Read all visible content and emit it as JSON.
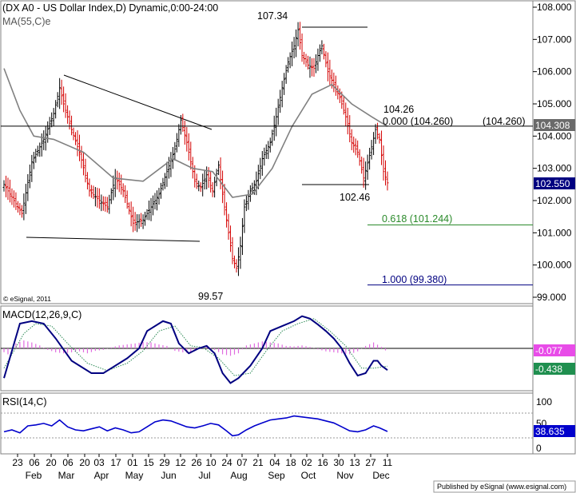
{
  "header": {
    "title": "(DX A0 - US Dollar Index,D) Dynamic,0:00-24:00",
    "ma_label": "MA(55,C)e",
    "copyright": "© eSignal, 2011"
  },
  "footer": {
    "published": "Published by eSignal (www.esignal.com)"
  },
  "colors": {
    "bull_bar": "#000000",
    "bear_bar": "#d40000",
    "ma": "#808080",
    "macd_line": "#000080",
    "signal_line": "#2e8b57",
    "histogram": "#e06ce0",
    "rsi_line": "#0000cc",
    "fib_618": "#2a8a2a",
    "fib_100": "#000080",
    "price_tag": "#000080",
    "macd_tag": "#e84ce8",
    "signal_tag": "#1f8f4f",
    "rsi_tag": "#0000cc"
  },
  "chart_data": [
    {
      "type": "candlestick",
      "title": "(DX A0 - US Dollar Index,D) Dynamic,0:00-24:00",
      "ylim": [
        98.8,
        108.2
      ],
      "y_ticks": [
        "108.000",
        "107.000",
        "106.000",
        "105.000",
        "104.000",
        "103.000",
        "102.000",
        "101.000",
        "100.000",
        "99.000"
      ],
      "x_tick_labels": [
        "23",
        "06",
        "20",
        "06",
        "20",
        "03",
        "17",
        "01",
        "15",
        "29",
        "12",
        "26",
        "10",
        "24",
        "07",
        "21",
        "04",
        "18",
        "02",
        "16",
        "30",
        "13",
        "27",
        "11"
      ],
      "month_labels": [
        "Feb",
        "Mar",
        "Apr",
        "May",
        "Jun",
        "Jul",
        "Aug",
        "Sep",
        "Oct",
        "Nov",
        "Dec"
      ],
      "annotations": {
        "high_label": "107.34",
        "low_label": "99.57",
        "recent_low_label": "102.46",
        "recent_high_label": "104.26",
        "fib_0": "0.000 (104.260)",
        "fib_0_right": "(104.260)",
        "fib_618": "0.618 (101.244)",
        "fib_100": "1.000 (99.380)"
      },
      "last_price_tag": "102.550",
      "horizontal_line_tag": "104.308",
      "levels": {
        "horizontal_line": 104.308,
        "fib_0": 104.26,
        "fib_618": 101.244,
        "fib_100": 99.38,
        "last": 102.55
      },
      "price_path": [
        [
          0,
          102.5
        ],
        [
          4,
          102.1
        ],
        [
          9,
          101.6
        ],
        [
          14,
          103.2
        ],
        [
          20,
          103.9
        ],
        [
          25,
          104.7
        ],
        [
          28,
          105.5
        ],
        [
          30,
          105.0
        ],
        [
          34,
          104.2
        ],
        [
          38,
          103.5
        ],
        [
          43,
          102.3
        ],
        [
          48,
          102.0
        ],
        [
          52,
          101.8
        ],
        [
          56,
          102.7
        ],
        [
          60,
          102.3
        ],
        [
          65,
          101.3
        ],
        [
          70,
          101.4
        ],
        [
          74,
          101.8
        ],
        [
          78,
          102.2
        ],
        [
          82,
          102.9
        ],
        [
          86,
          103.6
        ],
        [
          89,
          104.5
        ],
        [
          92,
          103.8
        ],
        [
          96,
          102.6
        ],
        [
          99,
          102.4
        ],
        [
          102,
          102.8
        ],
        [
          105,
          102.3
        ],
        [
          108,
          103.1
        ],
        [
          110,
          102.2
        ],
        [
          113,
          101.0
        ],
        [
          115,
          100.2
        ],
        [
          117,
          99.9
        ],
        [
          119,
          100.6
        ],
        [
          121,
          101.8
        ],
        [
          124,
          102.3
        ],
        [
          127,
          102.6
        ],
        [
          130,
          103.3
        ],
        [
          134,
          103.8
        ],
        [
          137,
          104.6
        ],
        [
          140,
          105.5
        ],
        [
          143,
          106.3
        ],
        [
          146,
          106.8
        ],
        [
          148,
          107.3
        ],
        [
          150,
          106.5
        ],
        [
          153,
          106.2
        ],
        [
          156,
          106.1
        ],
        [
          158,
          106.5
        ],
        [
          160,
          106.8
        ],
        [
          163,
          106.0
        ],
        [
          166,
          105.6
        ],
        [
          169,
          105.2
        ],
        [
          172,
          104.6
        ],
        [
          175,
          103.8
        ],
        [
          178,
          103.5
        ],
        [
          181,
          102.7
        ],
        [
          184,
          103.4
        ],
        [
          187,
          104.2
        ],
        [
          189,
          103.9
        ],
        [
          191,
          102.9
        ],
        [
          193,
          102.55
        ]
      ],
      "ma_path": [
        [
          0,
          106.1
        ],
        [
          8,
          104.8
        ],
        [
          15,
          104.0
        ],
        [
          25,
          103.9
        ],
        [
          40,
          103.5
        ],
        [
          55,
          102.7
        ],
        [
          70,
          102.6
        ],
        [
          85,
          103.3
        ],
        [
          95,
          103.0
        ],
        [
          105,
          102.9
        ],
        [
          115,
          102.1
        ],
        [
          125,
          102.2
        ],
        [
          135,
          103.0
        ],
        [
          145,
          104.3
        ],
        [
          155,
          105.3
        ],
        [
          165,
          105.6
        ],
        [
          175,
          105.0
        ],
        [
          185,
          104.6
        ],
        [
          193,
          104.3
        ]
      ]
    },
    {
      "type": "line",
      "title": "MACD(12,26,9,C)",
      "zero_line": true,
      "last_values": {
        "macd": "-0.438",
        "histogram": "-0.077"
      },
      "macd_path": [
        [
          0,
          -0.6
        ],
        [
          8,
          0.5
        ],
        [
          14,
          0.55
        ],
        [
          20,
          0.5
        ],
        [
          26,
          0.2
        ],
        [
          34,
          -0.25
        ],
        [
          44,
          -0.5
        ],
        [
          50,
          -0.5
        ],
        [
          54,
          -0.4
        ],
        [
          62,
          -0.2
        ],
        [
          68,
          0.0
        ],
        [
          72,
          0.35
        ],
        [
          80,
          0.55
        ],
        [
          84,
          0.5
        ],
        [
          88,
          0.1
        ],
        [
          93,
          -0.1
        ],
        [
          98,
          0.0
        ],
        [
          102,
          0.05
        ],
        [
          106,
          -0.1
        ],
        [
          110,
          -0.5
        ],
        [
          114,
          -0.7
        ],
        [
          118,
          -0.6
        ],
        [
          124,
          -0.35
        ],
        [
          130,
          0.0
        ],
        [
          134,
          0.35
        ],
        [
          140,
          0.45
        ],
        [
          146,
          0.55
        ],
        [
          150,
          0.65
        ],
        [
          154,
          0.6
        ],
        [
          158,
          0.48
        ],
        [
          162,
          0.35
        ],
        [
          166,
          0.2
        ],
        [
          170,
          0.0
        ],
        [
          174,
          -0.3
        ],
        [
          178,
          -0.55
        ],
        [
          182,
          -0.5
        ],
        [
          186,
          -0.25
        ],
        [
          188,
          -0.25
        ],
        [
          190,
          -0.35
        ],
        [
          193,
          -0.438
        ]
      ],
      "signal_path": [
        [
          0,
          -0.4
        ],
        [
          10,
          0.3
        ],
        [
          16,
          0.5
        ],
        [
          24,
          0.45
        ],
        [
          32,
          0.1
        ],
        [
          42,
          -0.3
        ],
        [
          52,
          -0.45
        ],
        [
          62,
          -0.3
        ],
        [
          70,
          -0.05
        ],
        [
          78,
          0.35
        ],
        [
          86,
          0.45
        ],
        [
          94,
          0.05
        ],
        [
          100,
          0.02
        ],
        [
          108,
          -0.2
        ],
        [
          116,
          -0.55
        ],
        [
          124,
          -0.5
        ],
        [
          132,
          -0.05
        ],
        [
          140,
          0.35
        ],
        [
          148,
          0.5
        ],
        [
          156,
          0.6
        ],
        [
          164,
          0.35
        ],
        [
          172,
          0.05
        ],
        [
          180,
          -0.4
        ],
        [
          186,
          -0.4
        ],
        [
          193,
          -0.36
        ]
      ],
      "histogram": [
        [
          2,
          -0.12
        ],
        [
          6,
          0.1
        ],
        [
          10,
          0.16
        ],
        [
          14,
          0.12
        ],
        [
          18,
          0.06
        ],
        [
          22,
          -0.03
        ],
        [
          26,
          -0.08
        ],
        [
          30,
          -0.1
        ],
        [
          34,
          -0.08
        ],
        [
          38,
          -0.06
        ],
        [
          42,
          -0.1
        ],
        [
          46,
          -0.05
        ],
        [
          50,
          -0.03
        ],
        [
          54,
          0.02
        ],
        [
          58,
          0.06
        ],
        [
          62,
          0.08
        ],
        [
          66,
          0.1
        ],
        [
          70,
          0.13
        ],
        [
          74,
          0.12
        ],
        [
          78,
          0.08
        ],
        [
          82,
          0.05
        ],
        [
          86,
          -0.05
        ],
        [
          90,
          -0.08
        ],
        [
          94,
          -0.1
        ],
        [
          98,
          0.02
        ],
        [
          102,
          0.05
        ],
        [
          106,
          -0.03
        ],
        [
          110,
          -0.12
        ],
        [
          114,
          -0.15
        ],
        [
          118,
          -0.1
        ],
        [
          122,
          0.06
        ],
        [
          126,
          0.1
        ],
        [
          130,
          0.14
        ],
        [
          134,
          0.12
        ],
        [
          138,
          0.1
        ],
        [
          142,
          0.05
        ],
        [
          146,
          0.04
        ],
        [
          150,
          0.06
        ],
        [
          154,
          0.03
        ],
        [
          158,
          -0.02
        ],
        [
          162,
          -0.06
        ],
        [
          166,
          -0.08
        ],
        [
          170,
          -0.1
        ],
        [
          174,
          -0.12
        ],
        [
          178,
          -0.06
        ],
        [
          182,
          0.05
        ],
        [
          186,
          0.12
        ],
        [
          190,
          0.03
        ],
        [
          193,
          -0.077
        ]
      ]
    },
    {
      "type": "line",
      "title": "RSI(14,C)",
      "ylim": [
        0,
        100
      ],
      "y_ticks": [
        "100",
        "50",
        "0"
      ],
      "bands": [
        30,
        70
      ],
      "last_value": "38.635",
      "rsi_path": [
        [
          0,
          38
        ],
        [
          4,
          42
        ],
        [
          8,
          36
        ],
        [
          12,
          50
        ],
        [
          16,
          52
        ],
        [
          20,
          55
        ],
        [
          24,
          50
        ],
        [
          28,
          62
        ],
        [
          32,
          48
        ],
        [
          36,
          42
        ],
        [
          40,
          40
        ],
        [
          44,
          44
        ],
        [
          48,
          48
        ],
        [
          52,
          40
        ],
        [
          56,
          46
        ],
        [
          60,
          42
        ],
        [
          64,
          36
        ],
        [
          68,
          38
        ],
        [
          72,
          48
        ],
        [
          76,
          58
        ],
        [
          80,
          62
        ],
        [
          84,
          60
        ],
        [
          88,
          54
        ],
        [
          92,
          48
        ],
        [
          96,
          46
        ],
        [
          100,
          50
        ],
        [
          104,
          55
        ],
        [
          108,
          52
        ],
        [
          112,
          40
        ],
        [
          115,
          30
        ],
        [
          118,
          32
        ],
        [
          122,
          42
        ],
        [
          126,
          50
        ],
        [
          130,
          56
        ],
        [
          134,
          62
        ],
        [
          138,
          64
        ],
        [
          142,
          66
        ],
        [
          146,
          70
        ],
        [
          150,
          68
        ],
        [
          154,
          66
        ],
        [
          158,
          64
        ],
        [
          162,
          60
        ],
        [
          166,
          56
        ],
        [
          170,
          48
        ],
        [
          174,
          40
        ],
        [
          178,
          38
        ],
        [
          182,
          42
        ],
        [
          186,
          50
        ],
        [
          189,
          46
        ],
        [
          193,
          38.635
        ]
      ]
    }
  ]
}
